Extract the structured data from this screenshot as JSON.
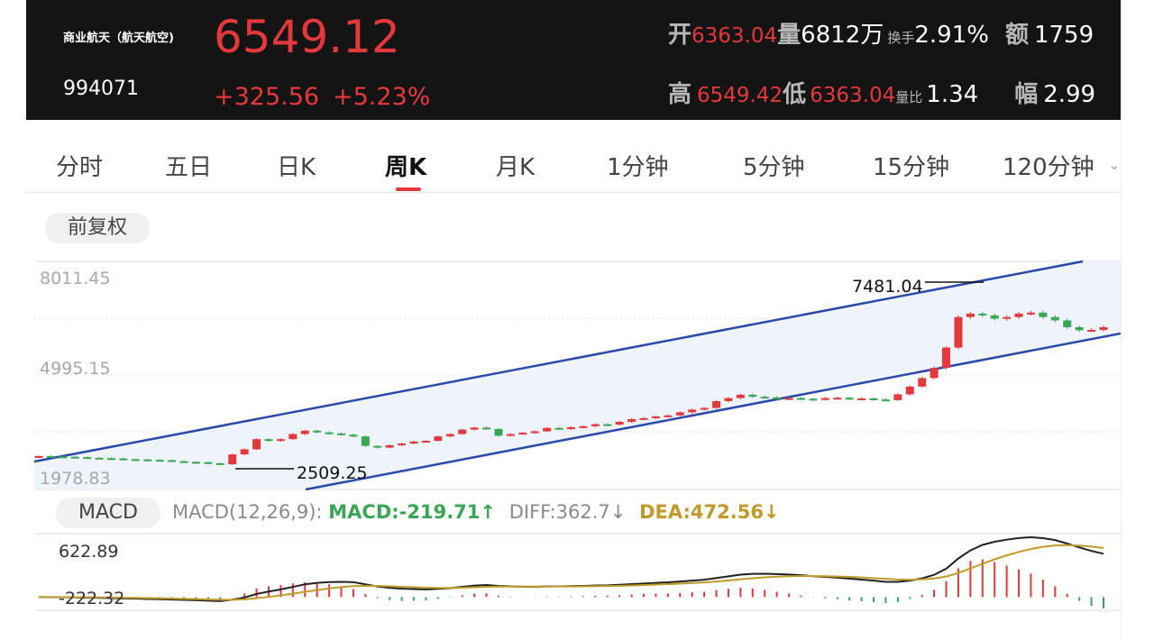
{
  "stock": {
    "name": "商业航天（航天航空)",
    "code": "994071",
    "price": "6549.12",
    "change": "+325.56",
    "change_pct": "+5.23%"
  },
  "stats": {
    "open_label": "开",
    "open": "6363.04",
    "volume_label": "量",
    "volume": "6812万",
    "turnover_label": "换手",
    "turnover": "2.91%",
    "amount_label": "额",
    "amount": "1759",
    "high_label": "高",
    "high": "6549.42",
    "low_label": "低",
    "low": "6363.04",
    "vol_ratio_label": "量比",
    "vol_ratio": "1.34",
    "amplitude_label": "幅",
    "amplitude": "2.99"
  },
  "tabs": [
    {
      "label": "分时"
    },
    {
      "label": "五日"
    },
    {
      "label": "日K"
    },
    {
      "label": "周K"
    },
    {
      "label": "月K"
    },
    {
      "label": "1分钟"
    },
    {
      "label": "5分钟"
    },
    {
      "label": "15分钟"
    },
    {
      "label": "120分钟"
    }
  ],
  "active_tab": "周K",
  "adjust_button": "前复权",
  "colors": {
    "up": "#e4393c",
    "down": "#3aa655",
    "channel": "#2a49a8",
    "dif": "#222222",
    "dea": "#c09a2a"
  },
  "kline": {
    "y_labels": [
      "8011.45",
      "4995.15",
      "1978.83"
    ],
    "annotation_high": "7481.04",
    "annotation_low": "2509.25"
  },
  "macd": {
    "pill": "MACD",
    "params": "MACD(12,26,9):",
    "macd": "MACD:-219.71↑",
    "diff": "DIFF:362.7↓",
    "dea": "DEA:472.56↓",
    "y_top": "622.89",
    "y_bottom": "-222.32"
  },
  "chart_data": {
    "type": "candlestick",
    "title": "",
    "period": "周K",
    "ylim": [
      1978.83,
      8011.45
    ],
    "notes": "approximate weekly closes estimated from candles",
    "closes": [
      2750,
      2740,
      2730,
      2720,
      2700,
      2690,
      2680,
      2660,
      2650,
      2640,
      2630,
      2600,
      2580,
      2570,
      2540,
      2509,
      2800,
      2950,
      3250,
      3200,
      3250,
      3400,
      3500,
      3450,
      3420,
      3380,
      3330,
      3050,
      3000,
      3070,
      3120,
      3180,
      3200,
      3330,
      3400,
      3530,
      3590,
      3550,
      3350,
      3400,
      3440,
      3480,
      3580,
      3550,
      3600,
      3630,
      3690,
      3680,
      3760,
      3840,
      3870,
      3920,
      3950,
      4040,
      4120,
      4170,
      4370,
      4460,
      4560,
      4500,
      4480,
      4450,
      4460,
      4440,
      4420,
      4460,
      4470,
      4440,
      4450,
      4420,
      4400,
      4570,
      4800,
      5050,
      5350,
      5950,
      6850,
      6950,
      6900,
      6800,
      6850,
      6950,
      6980,
      6850,
      6750,
      6550,
      6460,
      6470,
      6549
    ]
  }
}
